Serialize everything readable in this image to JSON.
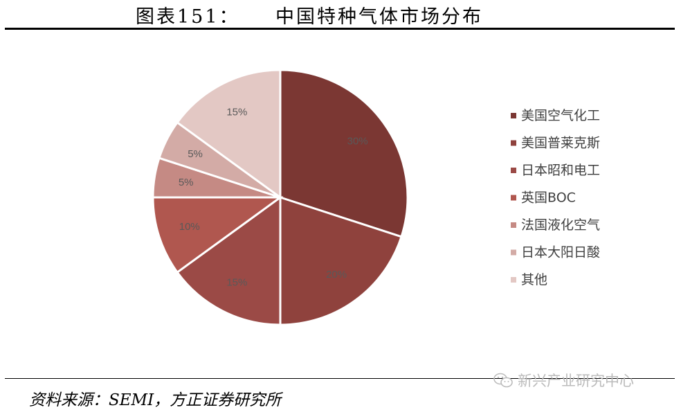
{
  "header": {
    "figure_number": "图表151：",
    "title": "中国特种气体市场分布"
  },
  "footer": {
    "source": "资料来源：SEMI，方正证券研究所",
    "watermark": "新兴产业研究中心",
    "watermark_icon": "wechat-icon"
  },
  "chart_data": {
    "type": "pie",
    "start_angle_deg": 0,
    "direction": "clockwise",
    "legend_position": "right",
    "slices": [
      {
        "label": "美国空气化工",
        "value": 30,
        "display": "30%",
        "color": "#7b3733"
      },
      {
        "label": "美国普莱克斯",
        "value": 20,
        "display": "20%",
        "color": "#8f423d"
      },
      {
        "label": "日本昭和电工",
        "value": 15,
        "display": "15%",
        "color": "#9b4a46"
      },
      {
        "label": "英国BOC",
        "value": 10,
        "display": "10%",
        "color": "#b0574f"
      },
      {
        "label": "法国液化空气",
        "value": 5,
        "display": "5%",
        "color": "#c58a84"
      },
      {
        "label": "日本大阳日酸",
        "value": 5,
        "display": "5%",
        "color": "#d3aba6"
      },
      {
        "label": "其他",
        "value": 15,
        "display": "15%",
        "color": "#e3c8c4"
      }
    ]
  }
}
